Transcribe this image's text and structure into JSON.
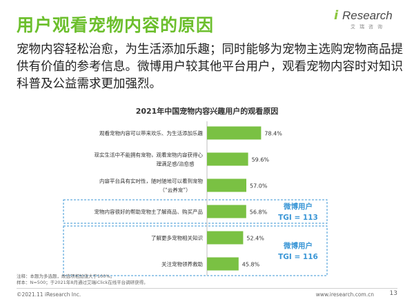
{
  "header": {
    "title": "用户观看宠物内容的原因",
    "logo_text": "Research",
    "logo_sub": "艾瑞咨询"
  },
  "intro_text": "宠物内容轻松治愈，为生活添加乐趣；同时能够为宠物主选购宠物商品提供有价值的参考信息。微博用户较其他平台用户，观看宠物内容时对知识科普及公益需求更加强烈。",
  "chart_data": {
    "type": "bar",
    "orientation": "horizontal",
    "title": "2021年中国宠物内容兴趣用户的观看原因",
    "categories": [
      [
        "观看宠物内容可以带来欢乐、为生活添加乐趣"
      ],
      [
        "现实生活中不能拥有宠物，观看宠物内容获得心",
        "理满足感/治愈感"
      ],
      [
        "内容平台具有实时性，随时随地可以看到宠物",
        "（“云养宠”）"
      ],
      [
        "宠物内容很好的帮助宠物主了解商品、购买产品"
      ],
      [
        "了解更多宠物相关知识"
      ],
      [
        "关注宠物领养救助"
      ]
    ],
    "values": [
      78.4,
      59.6,
      57.0,
      56.8,
      52.4,
      45.8
    ],
    "value_labels": [
      "78.4%",
      "59.6%",
      "57.0%",
      "56.8%",
      "52.4%",
      "45.8%"
    ],
    "xlim": [
      0,
      100
    ],
    "bar_color": "#7ac143",
    "highlight_groups": [
      {
        "rows": [
          3
        ],
        "label": "微博用户",
        "tgi": "TGI = 113"
      },
      {
        "rows": [
          4,
          5
        ],
        "label": "微博用户",
        "tgi": "TGI = 116"
      }
    ],
    "highlight_color": "#3a96d6"
  },
  "notes": {
    "line1": "注释：本题为多选题，故选项相加值大于100%。",
    "line2": "样本：N=500；于2021年8月通过艾瑞iClick在线平台调研获得。"
  },
  "footer": {
    "copyright": "©2021.11 iResearch Inc.",
    "website": "www.iresearch.com.cn",
    "page": "13"
  }
}
